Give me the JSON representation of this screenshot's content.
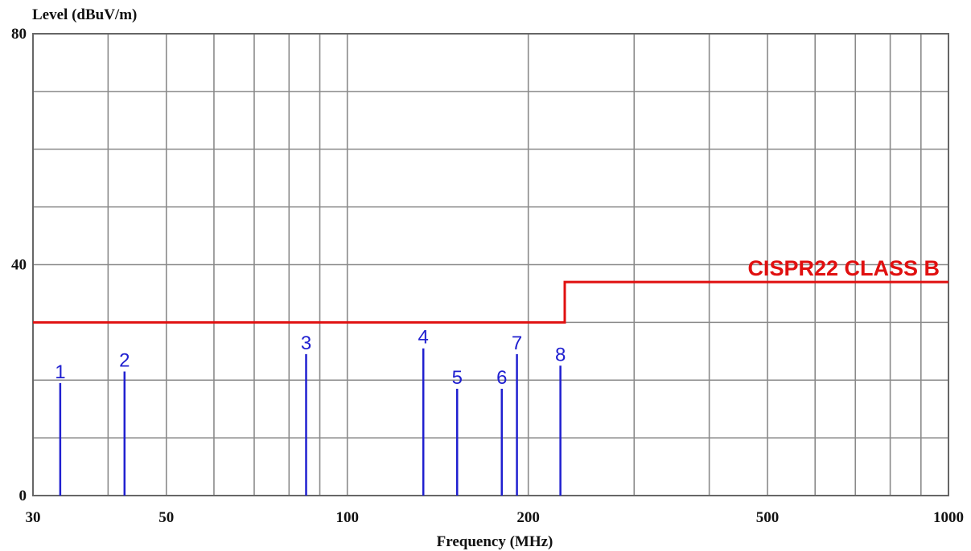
{
  "chart_data": {
    "type": "line",
    "title": "",
    "xlabel": "Frequency (MHz)",
    "ylabel": "Level (dBuV/m)",
    "x_scale": "log",
    "xlim": [
      30,
      1000
    ],
    "ylim": [
      0,
      80
    ],
    "x_ticks": [
      30,
      50,
      100,
      200,
      500,
      1000
    ],
    "x_gridlines": [
      30,
      40,
      50,
      60,
      70,
      80,
      90,
      100,
      200,
      300,
      400,
      500,
      600,
      700,
      800,
      900,
      1000
    ],
    "y_ticks": [
      0,
      40,
      80
    ],
    "y_gridlines": [
      0,
      10,
      20,
      30,
      40,
      50,
      60,
      70,
      80
    ],
    "grid": true,
    "limit_line": {
      "name": "CISPR22 CLASS B",
      "color": "#e01010",
      "points": [
        [
          30,
          30
        ],
        [
          230,
          30
        ],
        [
          230,
          37
        ],
        [
          1000,
          37
        ]
      ]
    },
    "markers": {
      "color": "#2020d0",
      "points": [
        {
          "label": "1",
          "x": 33.3,
          "y": 19.5
        },
        {
          "label": "2",
          "x": 42.6,
          "y": 21.5
        },
        {
          "label": "3",
          "x": 85.4,
          "y": 24.5
        },
        {
          "label": "4",
          "x": 133.8,
          "y": 25.5
        },
        {
          "label": "5",
          "x": 152.3,
          "y": 18.5
        },
        {
          "label": "6",
          "x": 180.7,
          "y": 18.5
        },
        {
          "label": "7",
          "x": 191.5,
          "y": 24.5
        },
        {
          "label": "8",
          "x": 226.2,
          "y": 22.5
        }
      ]
    }
  }
}
